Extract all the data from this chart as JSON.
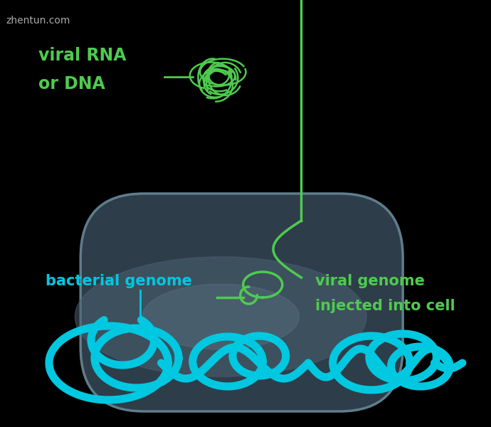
{
  "background_color": "#000000",
  "cell_fill_dark": "#2e3d4a",
  "cell_fill_light": "#4a6070",
  "cell_border_color": "#607d8b",
  "bacterial_genome_color": "#00c8e0",
  "viral_genome_color": "#4ecb4e",
  "label_bacterial_genome": "bacterial genome",
  "label_viral_genome_line1": "viral genome",
  "label_viral_genome_line2": "injected into cell",
  "label_viral_rna_line1": "viral RNA",
  "label_viral_rna_line2": "or DNA",
  "label_color_green": "#4ecb4e",
  "label_color_cyan": "#00c8e0",
  "watermark": "zhentun.com",
  "watermark_color": "#aaaaaa"
}
